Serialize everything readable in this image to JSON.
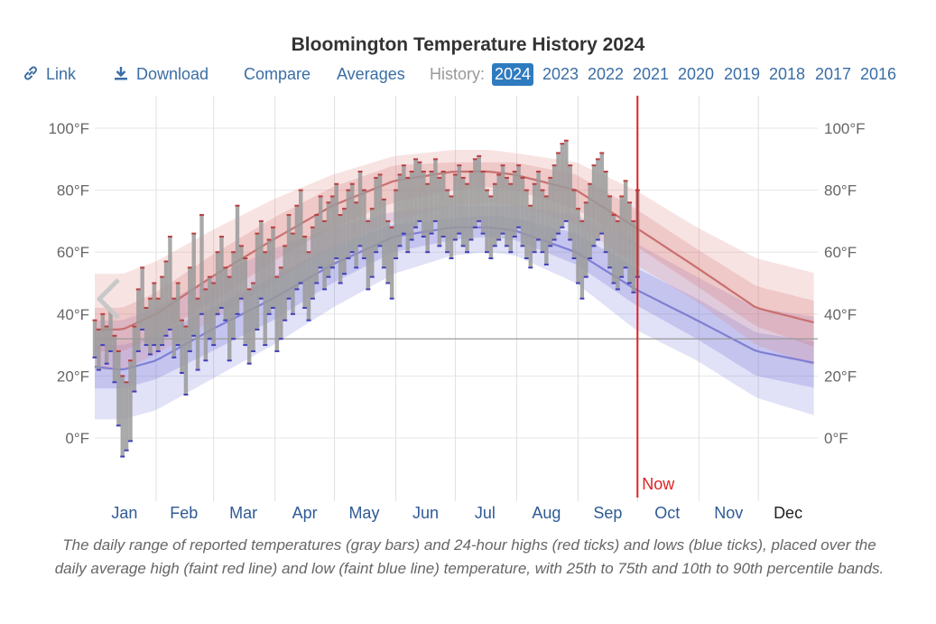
{
  "title": "Bloomington Temperature History 2024",
  "nav": {
    "link_label": "Link",
    "download_label": "Download",
    "compare_label": "Compare",
    "averages_label": "Averages",
    "history_label": "History:",
    "years": [
      "2024",
      "2023",
      "2022",
      "2021",
      "2020",
      "2019",
      "2018",
      "2017",
      "2016"
    ],
    "active_year": "2024"
  },
  "prev_arrow_icon": "chevron-left-icon",
  "caption": "The daily range of reported temperatures (gray bars) and 24-hour highs (red ticks) and lows (blue ticks), placed over the daily average high (faint red line) and low (faint blue line) temperature, with 25th to 75th and 10th to 90th percentile bands.",
  "colors": {
    "link": "#3a6ea5",
    "active_year_bg": "#2f7bbf",
    "now_line": "#d22",
    "avg_high": "#c87070",
    "avg_low": "#7f7fd4",
    "bar": "#9a9a9a"
  },
  "chart_data": {
    "type": "range",
    "title": "Bloomington Temperature History 2024",
    "months": [
      "Jan",
      "Feb",
      "Mar",
      "Apr",
      "May",
      "Jun",
      "Jul",
      "Aug",
      "Sep",
      "Oct",
      "Nov",
      "Dec"
    ],
    "current_month": "Dec",
    "ylim": [
      -20,
      110
    ],
    "yticks": [
      0,
      20,
      40,
      60,
      80,
      100
    ],
    "ytick_labels": [
      "0°F",
      "20°F",
      "40°F",
      "60°F",
      "80°F",
      "100°F"
    ],
    "freezing_line": 32,
    "now_label": "Now",
    "now_day": 275,
    "avg_high": {
      "days": [
        1,
        15,
        32,
        60,
        91,
        121,
        152,
        182,
        200,
        213,
        244,
        274,
        305,
        335,
        366
      ],
      "p10": [
        22,
        22,
        27,
        38,
        50,
        62,
        70,
        75,
        76,
        75,
        69,
        56,
        44,
        30,
        23
      ],
      "p25": [
        28,
        28,
        33,
        44,
        57,
        68,
        76,
        80,
        81,
        80,
        74,
        62,
        49,
        36,
        29
      ],
      "avg": [
        35,
        35,
        40,
        52,
        64,
        75,
        83,
        86,
        86,
        85,
        80,
        68,
        55,
        42,
        37
      ],
      "p75": [
        42,
        42,
        47,
        59,
        71,
        81,
        88,
        89,
        89,
        89,
        85,
        74,
        61,
        49,
        44
      ],
      "p90": [
        53,
        53,
        57,
        67,
        77,
        85,
        91,
        93,
        93,
        92,
        89,
        80,
        68,
        58,
        53
      ]
    },
    "avg_low": {
      "days": [
        1,
        15,
        32,
        60,
        91,
        121,
        152,
        182,
        200,
        213,
        244,
        274,
        305,
        335,
        366
      ],
      "p10": [
        6,
        6,
        9,
        19,
        30,
        42,
        53,
        59,
        60,
        59,
        50,
        35,
        25,
        13,
        7
      ],
      "p25": [
        16,
        16,
        19,
        28,
        38,
        50,
        60,
        64,
        65,
        64,
        56,
        43,
        32,
        20,
        16
      ],
      "avg": [
        23,
        22,
        25,
        35,
        45,
        56,
        65,
        68,
        68,
        67,
        60,
        48,
        38,
        28,
        24
      ],
      "p75": [
        30,
        30,
        33,
        42,
        52,
        62,
        69,
        71,
        72,
        71,
        66,
        55,
        45,
        34,
        31
      ],
      "p90": [
        38,
        38,
        42,
        52,
        61,
        68,
        73,
        75,
        75,
        75,
        72,
        63,
        52,
        42,
        39
      ]
    },
    "daily_range": [
      {
        "day": 1,
        "low": 26,
        "high": 38
      },
      {
        "day": 3,
        "low": 22,
        "high": 35
      },
      {
        "day": 5,
        "low": 30,
        "high": 40
      },
      {
        "day": 7,
        "low": 24,
        "high": 36
      },
      {
        "day": 9,
        "low": 28,
        "high": 41
      },
      {
        "day": 11,
        "low": 18,
        "high": 33
      },
      {
        "day": 13,
        "low": 4,
        "high": 28
      },
      {
        "day": 15,
        "low": -6,
        "high": 20
      },
      {
        "day": 17,
        "low": -4,
        "high": 18
      },
      {
        "day": 19,
        "low": -1,
        "high": 25
      },
      {
        "day": 21,
        "low": 15,
        "high": 36
      },
      {
        "day": 23,
        "low": 28,
        "high": 48
      },
      {
        "day": 25,
        "low": 35,
        "high": 55
      },
      {
        "day": 27,
        "low": 30,
        "high": 42
      },
      {
        "day": 29,
        "low": 27,
        "high": 45
      },
      {
        "day": 31,
        "low": 30,
        "high": 50
      },
      {
        "day": 33,
        "low": 28,
        "high": 45
      },
      {
        "day": 35,
        "low": 30,
        "high": 52
      },
      {
        "day": 37,
        "low": 33,
        "high": 57
      },
      {
        "day": 39,
        "low": 35,
        "high": 65
      },
      {
        "day": 41,
        "low": 26,
        "high": 45
      },
      {
        "day": 43,
        "low": 30,
        "high": 50
      },
      {
        "day": 45,
        "low": 21,
        "high": 38
      },
      {
        "day": 47,
        "low": 14,
        "high": 36
      },
      {
        "day": 49,
        "low": 28,
        "high": 55
      },
      {
        "day": 51,
        "low": 33,
        "high": 66
      },
      {
        "day": 53,
        "low": 22,
        "high": 45
      },
      {
        "day": 55,
        "low": 40,
        "high": 72
      },
      {
        "day": 57,
        "low": 25,
        "high": 48
      },
      {
        "day": 59,
        "low": 32,
        "high": 52
      },
      {
        "day": 61,
        "low": 30,
        "high": 50
      },
      {
        "day": 63,
        "low": 40,
        "high": 60
      },
      {
        "day": 65,
        "low": 42,
        "high": 65
      },
      {
        "day": 67,
        "low": 38,
        "high": 55
      },
      {
        "day": 69,
        "low": 25,
        "high": 52
      },
      {
        "day": 71,
        "low": 32,
        "high": 60
      },
      {
        "day": 73,
        "low": 40,
        "high": 75
      },
      {
        "day": 75,
        "low": 45,
        "high": 62
      },
      {
        "day": 77,
        "low": 30,
        "high": 58
      },
      {
        "day": 79,
        "low": 24,
        "high": 48
      },
      {
        "day": 81,
        "low": 28,
        "high": 50
      },
      {
        "day": 83,
        "low": 35,
        "high": 66
      },
      {
        "day": 85,
        "low": 45,
        "high": 70
      },
      {
        "day": 87,
        "low": 30,
        "high": 60
      },
      {
        "day": 89,
        "low": 40,
        "high": 64
      },
      {
        "day": 91,
        "low": 42,
        "high": 68
      },
      {
        "day": 93,
        "low": 28,
        "high": 52
      },
      {
        "day": 95,
        "low": 32,
        "high": 55
      },
      {
        "day": 97,
        "low": 38,
        "high": 62
      },
      {
        "day": 99,
        "low": 45,
        "high": 72
      },
      {
        "day": 101,
        "low": 40,
        "high": 66
      },
      {
        "day": 103,
        "low": 48,
        "high": 75
      },
      {
        "day": 105,
        "low": 50,
        "high": 80
      },
      {
        "day": 107,
        "low": 42,
        "high": 65
      },
      {
        "day": 109,
        "low": 38,
        "high": 60
      },
      {
        "day": 111,
        "low": 45,
        "high": 68
      },
      {
        "day": 113,
        "low": 50,
        "high": 72
      },
      {
        "day": 115,
        "low": 55,
        "high": 78
      },
      {
        "day": 117,
        "low": 48,
        "high": 70
      },
      {
        "day": 119,
        "low": 52,
        "high": 76
      },
      {
        "day": 121,
        "low": 55,
        "high": 78
      },
      {
        "day": 123,
        "low": 58,
        "high": 82
      },
      {
        "day": 125,
        "low": 50,
        "high": 72
      },
      {
        "day": 127,
        "low": 53,
        "high": 74
      },
      {
        "day": 129,
        "low": 58,
        "high": 80
      },
      {
        "day": 131,
        "low": 60,
        "high": 82
      },
      {
        "day": 133,
        "low": 55,
        "high": 76
      },
      {
        "day": 135,
        "low": 62,
        "high": 86
      },
      {
        "day": 137,
        "low": 58,
        "high": 80
      },
      {
        "day": 139,
        "low": 48,
        "high": 70
      },
      {
        "day": 141,
        "low": 52,
        "high": 74
      },
      {
        "day": 143,
        "low": 60,
        "high": 84
      },
      {
        "day": 145,
        "low": 62,
        "high": 85
      },
      {
        "day": 147,
        "low": 55,
        "high": 77
      },
      {
        "day": 149,
        "low": 50,
        "high": 70
      },
      {
        "day": 151,
        "low": 45,
        "high": 68
      },
      {
        "day": 153,
        "low": 58,
        "high": 80
      },
      {
        "day": 155,
        "low": 62,
        "high": 85
      },
      {
        "day": 157,
        "low": 66,
        "high": 88
      },
      {
        "day": 159,
        "low": 60,
        "high": 84
      },
      {
        "day": 161,
        "low": 64,
        "high": 86
      },
      {
        "day": 163,
        "low": 68,
        "high": 90
      },
      {
        "day": 165,
        "low": 70,
        "high": 89
      },
      {
        "day": 167,
        "low": 65,
        "high": 86
      },
      {
        "day": 169,
        "low": 60,
        "high": 82
      },
      {
        "day": 171,
        "low": 66,
        "high": 86
      },
      {
        "day": 173,
        "low": 70,
        "high": 90
      },
      {
        "day": 175,
        "low": 62,
        "high": 84
      },
      {
        "day": 177,
        "low": 65,
        "high": 86
      },
      {
        "day": 179,
        "low": 60,
        "high": 80
      },
      {
        "day": 181,
        "low": 58,
        "high": 78
      },
      {
        "day": 183,
        "low": 64,
        "high": 85
      },
      {
        "day": 185,
        "low": 66,
        "high": 88
      },
      {
        "day": 187,
        "low": 62,
        "high": 84
      },
      {
        "day": 189,
        "low": 60,
        "high": 82
      },
      {
        "day": 191,
        "low": 64,
        "high": 86
      },
      {
        "day": 193,
        "low": 68,
        "high": 90
      },
      {
        "day": 195,
        "low": 70,
        "high": 91
      },
      {
        "day": 197,
        "low": 66,
        "high": 86
      },
      {
        "day": 199,
        "low": 60,
        "high": 80
      },
      {
        "day": 201,
        "low": 58,
        "high": 78
      },
      {
        "day": 203,
        "low": 62,
        "high": 82
      },
      {
        "day": 205,
        "low": 64,
        "high": 85
      },
      {
        "day": 207,
        "low": 66,
        "high": 88
      },
      {
        "day": 209,
        "low": 62,
        "high": 84
      },
      {
        "day": 211,
        "low": 60,
        "high": 82
      },
      {
        "day": 213,
        "low": 65,
        "high": 86
      },
      {
        "day": 215,
        "low": 68,
        "high": 88
      },
      {
        "day": 217,
        "low": 62,
        "high": 84
      },
      {
        "day": 219,
        "low": 58,
        "high": 80
      },
      {
        "day": 221,
        "low": 55,
        "high": 75
      },
      {
        "day": 223,
        "low": 60,
        "high": 82
      },
      {
        "day": 225,
        "low": 64,
        "high": 86
      },
      {
        "day": 227,
        "low": 60,
        "high": 80
      },
      {
        "day": 229,
        "low": 56,
        "high": 78
      },
      {
        "day": 231,
        "low": 62,
        "high": 84
      },
      {
        "day": 233,
        "low": 64,
        "high": 88
      },
      {
        "day": 235,
        "low": 66,
        "high": 92
      },
      {
        "day": 237,
        "low": 68,
        "high": 95
      },
      {
        "day": 239,
        "low": 70,
        "high": 96
      },
      {
        "day": 241,
        "low": 64,
        "high": 88
      },
      {
        "day": 243,
        "low": 58,
        "high": 80
      },
      {
        "day": 245,
        "low": 50,
        "high": 74
      },
      {
        "day": 247,
        "low": 45,
        "high": 70
      },
      {
        "day": 249,
        "low": 52,
        "high": 76
      },
      {
        "day": 251,
        "low": 58,
        "high": 82
      },
      {
        "day": 253,
        "low": 62,
        "high": 88
      },
      {
        "day": 255,
        "low": 64,
        "high": 90
      },
      {
        "day": 257,
        "low": 66,
        "high": 92
      },
      {
        "day": 259,
        "low": 60,
        "high": 86
      },
      {
        "day": 261,
        "low": 55,
        "high": 78
      },
      {
        "day": 263,
        "low": 50,
        "high": 72
      },
      {
        "day": 265,
        "low": 48,
        "high": 70
      },
      {
        "day": 267,
        "low": 52,
        "high": 78
      },
      {
        "day": 269,
        "low": 55,
        "high": 83
      },
      {
        "day": 271,
        "low": 50,
        "high": 76
      },
      {
        "day": 273,
        "low": 47,
        "high": 70
      },
      {
        "day": 275,
        "low": 52,
        "high": 80
      }
    ]
  }
}
